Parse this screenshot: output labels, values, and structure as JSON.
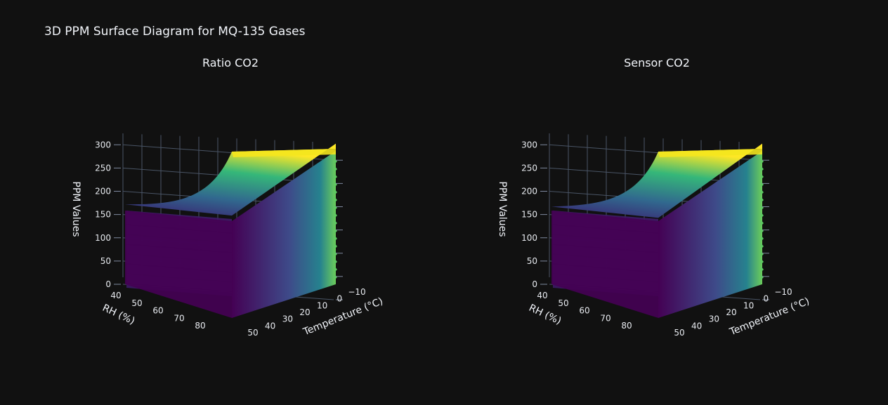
{
  "figure": {
    "title": "3D PPM Surface Diagram for MQ-135 Gases"
  },
  "chart_data": [
    {
      "type": "surface",
      "title": "Ratio CO2",
      "colorscale": "viridis",
      "colors": [
        "#440154",
        "#3b528b",
        "#21918c",
        "#5ec962",
        "#fde725"
      ],
      "x_label": "Temperature (°C)",
      "y_label": "RH (%)",
      "z_label": "PPM Values",
      "x_ticks": [
        "−10",
        "0",
        "10",
        "20",
        "30",
        "40",
        "50"
      ],
      "y_ticks": [
        "40",
        "50",
        "60",
        "70",
        "80"
      ],
      "z_ticks": [
        "0",
        "50",
        "100",
        "150",
        "200",
        "250",
        "300"
      ],
      "x_range": [
        -10,
        50
      ],
      "y_range": [
        40,
        85
      ],
      "z_range": [
        0,
        320
      ],
      "layers": 15,
      "z_min": 0,
      "z_max": 310,
      "shelf_z": 175
    },
    {
      "type": "surface",
      "title": "Sensor CO2",
      "colorscale": "viridis",
      "colors": [
        "#440154",
        "#3b528b",
        "#21918c",
        "#5ec962",
        "#fde725"
      ],
      "x_label": "Temperature (°C)",
      "y_label": "RH (%)",
      "z_label": "PPM Values",
      "x_ticks": [
        "−10",
        "0",
        "10",
        "20",
        "30",
        "40",
        "50"
      ],
      "y_ticks": [
        "40",
        "50",
        "60",
        "70",
        "80"
      ],
      "z_ticks": [
        "0",
        "50",
        "100",
        "150",
        "200",
        "250",
        "300"
      ],
      "x_range": [
        -10,
        50
      ],
      "y_range": [
        40,
        85
      ],
      "z_range": [
        0,
        320
      ],
      "layers": 15,
      "z_min": 0,
      "z_max": 310,
      "shelf_z": 170
    }
  ]
}
